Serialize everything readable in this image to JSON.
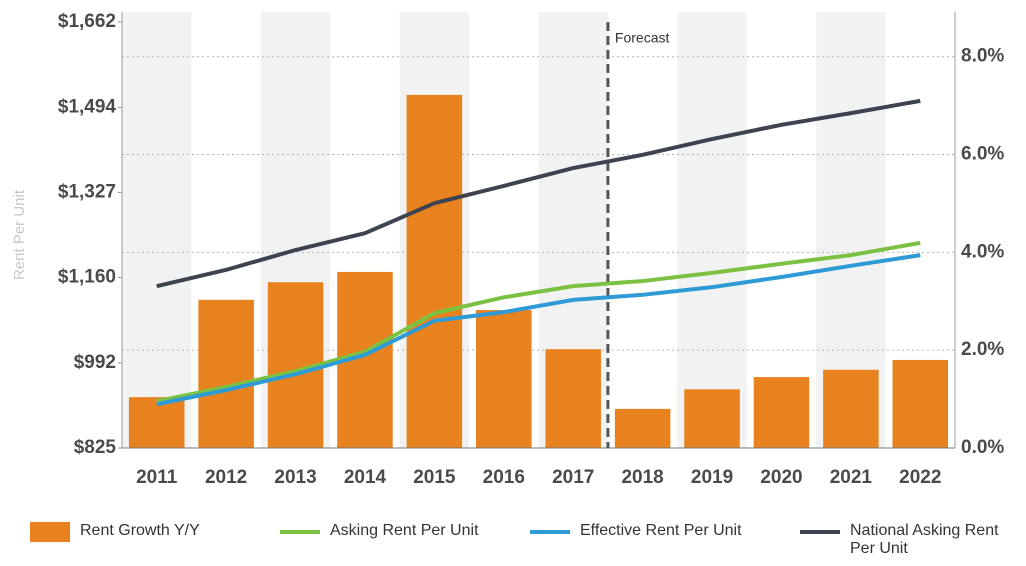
{
  "chart_data": {
    "type": "bar-line",
    "y_label": "Rent Per Unit",
    "annotation": "Forecast",
    "categories": [
      "2011",
      "2012",
      "2013",
      "2014",
      "2015",
      "2016",
      "2017",
      "2018",
      "2019",
      "2020",
      "2021",
      "2022"
    ],
    "series": [
      {
        "name": "Rent Growth Y/Y",
        "type": "bar",
        "axis": "y2",
        "color": "#e8821e",
        "values": [
          1.04,
          3.03,
          3.39,
          3.6,
          7.22,
          2.82,
          2.02,
          0.8,
          1.2,
          1.45,
          1.6,
          1.8
        ]
      },
      {
        "name": "Asking Rent Per Unit",
        "type": "line",
        "color": "#7cc242",
        "values": [
          917,
          945,
          976,
          1014,
          1090,
          1121,
          1143,
          1153,
          1169,
          1187,
          1204,
          1228
        ]
      },
      {
        "name": "Effective Rent Per Unit",
        "type": "line",
        "color": "#2e9bd6",
        "values": [
          911,
          939,
          970,
          1008,
          1075,
          1092,
          1116,
          1126,
          1141,
          1161,
          1183,
          1204
        ]
      },
      {
        "name": "National Asking Rent Per Unit",
        "type": "line",
        "color": "#3d4450",
        "values": [
          1143,
          1175,
          1214,
          1247,
          1306,
          1340,
          1375,
          1401,
          1432,
          1460,
          1483,
          1507
        ]
      }
    ],
    "ylim": [
      825,
      1662
    ],
    "yticks": [
      {
        "value": 825,
        "label": "$825"
      },
      {
        "value": 992,
        "label": "$992"
      },
      {
        "value": 1160,
        "label": "$1,160"
      },
      {
        "value": 1327,
        "label": "$1,327"
      },
      {
        "value": 1494,
        "label": "$1,494"
      },
      {
        "value": 1662,
        "label": "$1,662"
      }
    ],
    "y2lim": [
      0,
      8.71
    ],
    "y2ticks": [
      {
        "value": 0,
        "label": "0.0%"
      },
      {
        "value": 2,
        "label": "2.0%"
      },
      {
        "value": 4,
        "label": "4.0%"
      },
      {
        "value": 6,
        "label": "6.0%"
      },
      {
        "value": 8,
        "label": "8.0%"
      }
    ],
    "grid": true
  }
}
